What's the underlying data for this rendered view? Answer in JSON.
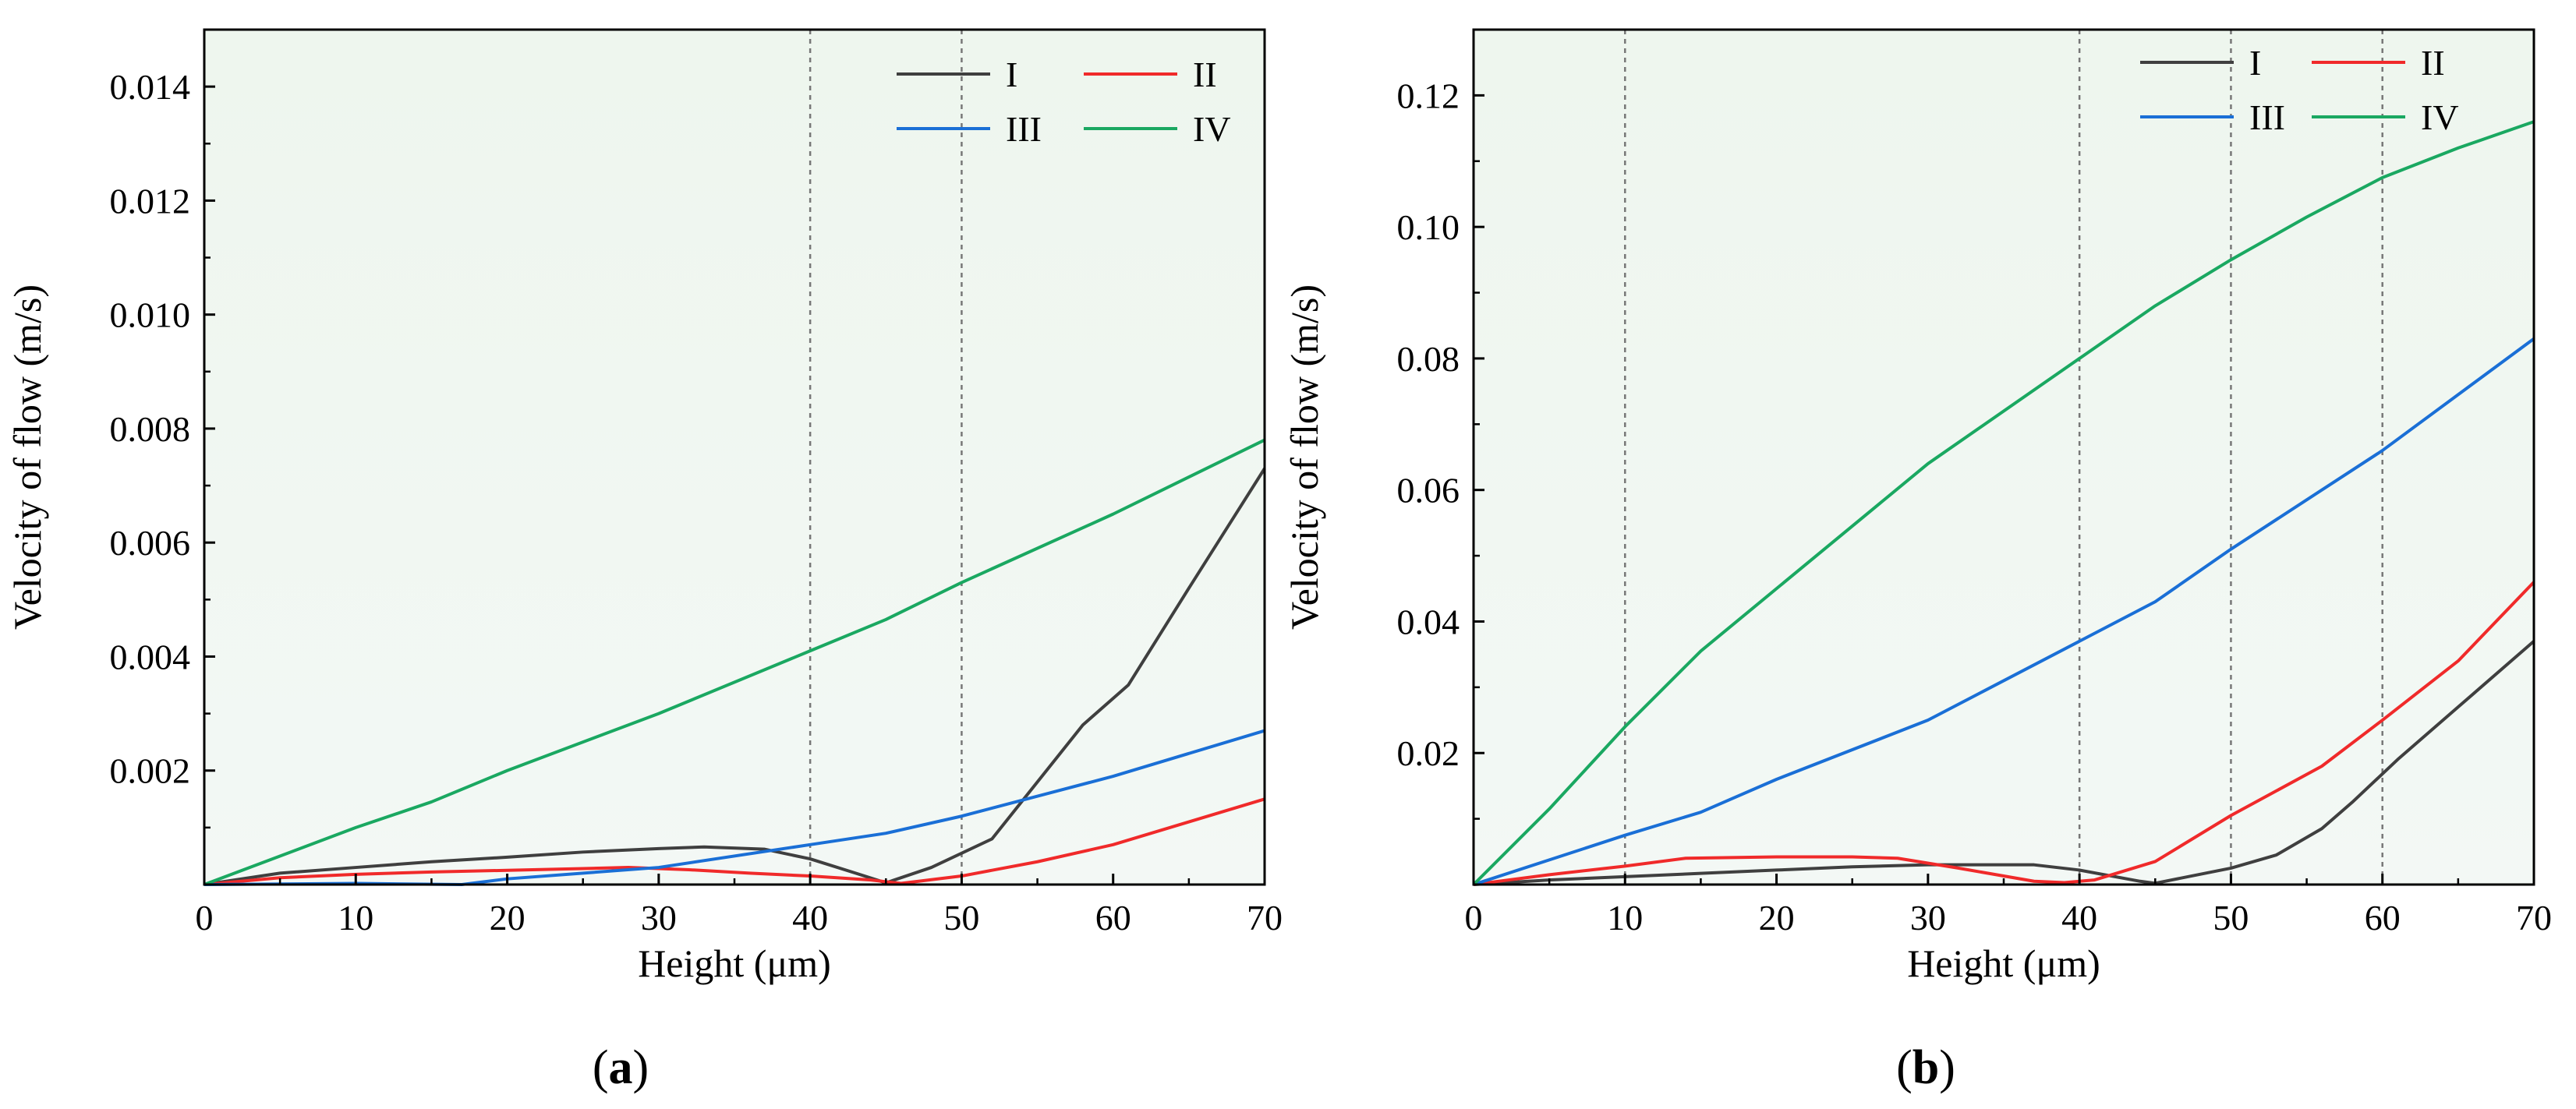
{
  "figure": {
    "panels": [
      "(a)",
      "(b)"
    ],
    "panel_label_parts": [
      {
        "open": "(",
        "letter": "a",
        "close": ")"
      },
      {
        "open": "(",
        "letter": "b",
        "close": ")"
      }
    ]
  },
  "colors": {
    "plot_bg_top": "#eef6ee",
    "plot_bg_bottom": "#f3f8f5",
    "ref_line": "#777777",
    "series": {
      "I": "#3f3f3f",
      "II": "#f02a2a",
      "III": "#1a6fd6",
      "IV": "#1aa861"
    }
  },
  "chart_data": [
    {
      "type": "line",
      "panel": "a",
      "xlabel": "Height (μm)",
      "ylabel": "Velocity of flow (m/s)",
      "xlim": [
        0,
        70
      ],
      "ylim": [
        0,
        0.015
      ],
      "xticks": [
        0,
        10,
        20,
        30,
        40,
        50,
        60,
        70
      ],
      "xtick_labels": [
        "0",
        "10",
        "20",
        "30",
        "40",
        "50",
        "60",
        "70"
      ],
      "yticks": [
        0.002,
        0.004,
        0.006,
        0.008,
        0.01,
        0.012,
        0.014
      ],
      "ytick_labels": [
        "0.002",
        "0.004",
        "0.006",
        "0.008",
        "0.010",
        "0.012",
        "0.014"
      ],
      "ref_lines_x": [
        40,
        50
      ],
      "legend_position": "top-right",
      "series": [
        {
          "name": "I",
          "x": [
            0,
            5,
            10,
            15,
            20,
            25,
            30,
            33,
            37,
            40,
            43,
            45,
            48,
            52,
            55,
            58,
            61,
            65,
            70
          ],
          "values": [
            0,
            0.0002,
            0.0003,
            0.0004,
            0.00048,
            0.00057,
            0.00063,
            0.00066,
            0.00062,
            0.00045,
            0.0002,
            3e-05,
            0.0003,
            0.0008,
            0.0018,
            0.0028,
            0.0035,
            0.0052,
            0.0073
          ]
        },
        {
          "name": "II",
          "x": [
            0,
            5,
            10,
            15,
            20,
            25,
            28,
            32,
            36,
            40,
            44,
            46,
            50,
            55,
            60,
            65,
            70
          ],
          "values": [
            0,
            0.00012,
            0.00018,
            0.00022,
            0.00025,
            0.00028,
            0.0003,
            0.00026,
            0.0002,
            0.00015,
            8e-05,
            2e-05,
            0.00015,
            0.0004,
            0.0007,
            0.0011,
            0.0015
          ]
        },
        {
          "name": "III",
          "x": [
            0,
            10,
            17,
            20,
            30,
            40,
            45,
            50,
            60,
            70
          ],
          "values": [
            0,
            2e-05,
            0,
            0.0001,
            0.0003,
            0.0007,
            0.0009,
            0.0012,
            0.0019,
            0.0027
          ]
        },
        {
          "name": "IV",
          "x": [
            0,
            10,
            15,
            20,
            30,
            40,
            45,
            50,
            60,
            70
          ],
          "values": [
            0,
            0.001,
            0.00145,
            0.002,
            0.003,
            0.0041,
            0.00465,
            0.0053,
            0.0065,
            0.0078
          ]
        }
      ]
    },
    {
      "type": "line",
      "panel": "b",
      "xlabel": "Height (μm)",
      "ylabel": "Velocity of flow (m/s)",
      "xlim": [
        0,
        70
      ],
      "ylim": [
        0,
        0.13
      ],
      "xticks": [
        0,
        10,
        20,
        30,
        40,
        50,
        60,
        70
      ],
      "xtick_labels": [
        "0",
        "10",
        "20",
        "30",
        "40",
        "50",
        "60",
        "70"
      ],
      "yticks": [
        0.02,
        0.04,
        0.06,
        0.08,
        0.1,
        0.12
      ],
      "ytick_labels": [
        "0.02",
        "0.04",
        "0.06",
        "0.08",
        "0.10",
        "0.12"
      ],
      "ref_lines_x": [
        10,
        40,
        50,
        60
      ],
      "legend_position": "top-right",
      "series": [
        {
          "name": "I",
          "x": [
            0,
            5,
            10,
            15,
            20,
            25,
            30,
            37,
            40,
            44,
            45,
            50,
            53,
            56,
            58,
            61,
            65,
            70
          ],
          "values": [
            0,
            0.0007,
            0.0012,
            0.0017,
            0.0022,
            0.0027,
            0.003,
            0.003,
            0.0022,
            0.0005,
            0.0002,
            0.0025,
            0.0045,
            0.0085,
            0.0125,
            0.019,
            0.027,
            0.037
          ]
        },
        {
          "name": "II",
          "x": [
            0,
            5,
            10,
            14,
            20,
            25,
            28,
            32,
            37,
            39,
            41,
            45,
            50,
            56,
            60,
            65,
            70
          ],
          "values": [
            0,
            0.0015,
            0.0028,
            0.004,
            0.0042,
            0.0042,
            0.004,
            0.0025,
            0.0005,
            0.0003,
            0.0007,
            0.0035,
            0.0105,
            0.018,
            0.025,
            0.034,
            0.046
          ]
        },
        {
          "name": "III",
          "x": [
            0,
            10,
            15,
            20,
            30,
            40,
            45,
            50,
            60,
            70
          ],
          "values": [
            0,
            0.0075,
            0.011,
            0.016,
            0.025,
            0.037,
            0.043,
            0.051,
            0.066,
            0.083
          ]
        },
        {
          "name": "IV",
          "x": [
            0,
            5,
            10,
            15,
            20,
            30,
            40,
            45,
            50,
            55,
            60,
            65,
            70
          ],
          "values": [
            0,
            0.0115,
            0.024,
            0.0355,
            0.045,
            0.064,
            0.08,
            0.088,
            0.095,
            0.1015,
            0.1075,
            0.112,
            0.116
          ]
        }
      ]
    }
  ]
}
